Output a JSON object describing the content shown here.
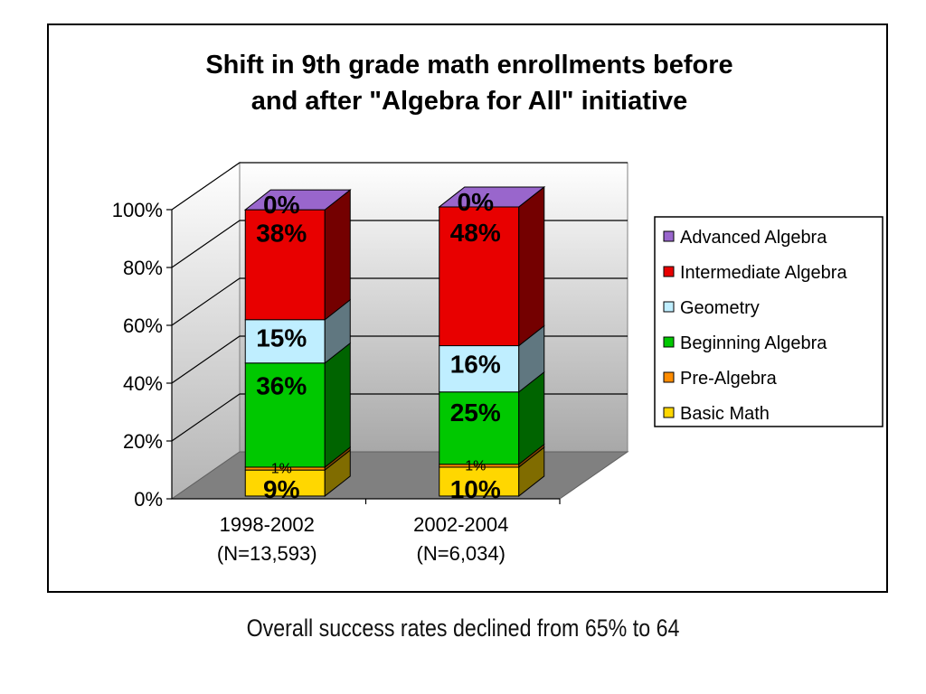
{
  "chart_data": {
    "type": "bar",
    "stacked": true,
    "three_d": true,
    "title_lines": [
      "Shift in 9th grade math enrollments before",
      "and after \"Algebra for All\" initiative"
    ],
    "categories": [
      [
        "1998-2002",
        "(N=13,593)"
      ],
      [
        "2002-2004",
        "(N=6,034)"
      ]
    ],
    "y_ticks": [
      "0%",
      "20%",
      "40%",
      "60%",
      "80%",
      "100%"
    ],
    "ylim": [
      0,
      100
    ],
    "grid": true,
    "legend_position": "right",
    "series": [
      {
        "name": "Basic Math",
        "color": "#ffd700",
        "values": [
          9,
          10
        ],
        "labels": [
          "9%",
          "10%"
        ]
      },
      {
        "name": "Pre-Algebra",
        "color": "#ff8c00",
        "values": [
          1,
          1
        ],
        "labels": [
          "1%",
          "1%"
        ]
      },
      {
        "name": "Beginning Algebra",
        "color": "#00c800",
        "values": [
          36,
          25
        ],
        "labels": [
          "36%",
          "25%"
        ]
      },
      {
        "name": "Geometry",
        "color": "#bfeeff",
        "values": [
          15,
          16
        ],
        "labels": [
          "15%",
          "16%"
        ]
      },
      {
        "name": "Intermediate Algebra",
        "color": "#e80000",
        "values": [
          38,
          48
        ],
        "labels": [
          "38%",
          "48%"
        ]
      },
      {
        "name": "Advanced Algebra",
        "color": "#9966cc",
        "values": [
          0,
          0
        ],
        "labels": [
          "0%",
          "0%"
        ]
      }
    ]
  },
  "caption": "Overall success rates declined from 65% to 64"
}
